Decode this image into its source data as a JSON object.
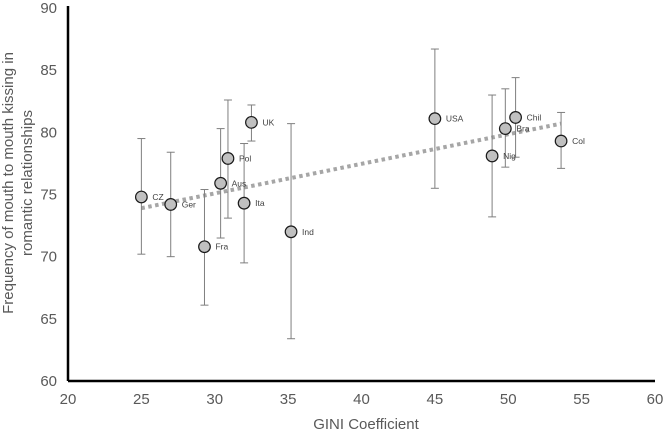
{
  "chart_data": {
    "type": "scatter",
    "xlabel": "GINI Coefficient",
    "ylabel_lines": [
      "Frequency of mouth to mouth kissing in",
      "romantic relationships"
    ],
    "xlim": [
      20,
      60
    ],
    "ylim": [
      60,
      90
    ],
    "xticks": [
      "20",
      "25",
      "30",
      "35",
      "40",
      "45",
      "50",
      "55",
      "60"
    ],
    "yticks": [
      "60",
      "65",
      "70",
      "75",
      "80",
      "85",
      "90"
    ],
    "grid": false,
    "trendline": {
      "style": "dotted",
      "color": "#a6a6a6",
      "x": [
        25,
        53.6
      ],
      "y": [
        73.9,
        80.7
      ]
    },
    "marker_fill": "#c0c0c0",
    "marker_stroke": "#1a1a1a",
    "errorbar_color": "#7f7f7f",
    "points": [
      {
        "label": "CZ",
        "x": 25.0,
        "y": 74.8,
        "err_low": 70.2,
        "err_high": 79.5
      },
      {
        "label": "Ger",
        "x": 27.0,
        "y": 74.2,
        "err_low": 70.0,
        "err_high": 78.4
      },
      {
        "label": "Fra",
        "x": 29.3,
        "y": 70.8,
        "err_low": 66.1,
        "err_high": 75.4
      },
      {
        "label": "Aus",
        "x": 30.4,
        "y": 75.9,
        "err_low": 71.5,
        "err_high": 80.3
      },
      {
        "label": "Pol",
        "x": 30.9,
        "y": 77.9,
        "err_low": 73.1,
        "err_high": 82.6
      },
      {
        "label": "Ita",
        "x": 32.0,
        "y": 74.3,
        "err_low": 69.5,
        "err_high": 79.1
      },
      {
        "label": "UK",
        "x": 32.5,
        "y": 80.8,
        "err_low": 79.3,
        "err_high": 82.2
      },
      {
        "label": "Ind",
        "x": 35.2,
        "y": 72.0,
        "err_low": 63.4,
        "err_high": 80.7
      },
      {
        "label": "USA",
        "x": 45.0,
        "y": 81.1,
        "err_low": 75.5,
        "err_high": 86.7
      },
      {
        "label": "Nig",
        "x": 48.9,
        "y": 78.1,
        "err_low": 73.2,
        "err_high": 83.0
      },
      {
        "label": "Bra",
        "x": 49.8,
        "y": 80.3,
        "err_low": 77.2,
        "err_high": 83.5
      },
      {
        "label": "Chil",
        "x": 50.5,
        "y": 81.2,
        "err_low": 78.0,
        "err_high": 84.4
      },
      {
        "label": "Col",
        "x": 53.6,
        "y": 79.3,
        "err_low": 77.1,
        "err_high": 81.6
      }
    ]
  }
}
